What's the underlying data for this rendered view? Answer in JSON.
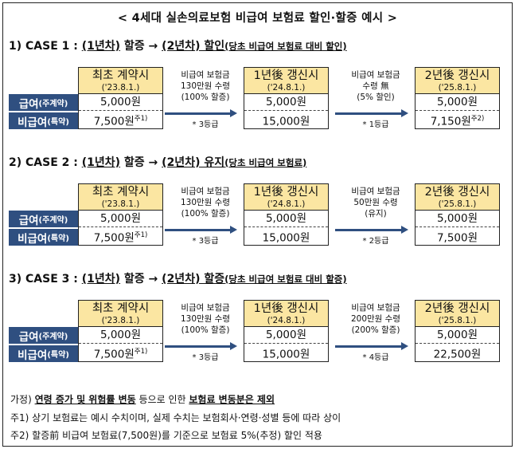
{
  "title": "< 4세대 실손의료보험 비급여 보험료 할인·할증 예시 >",
  "row_labels": {
    "covered_main": "급여",
    "covered_sub": "(주계약)",
    "noncovered_main": "비급여",
    "noncovered_sub": "(특약)"
  },
  "cases": [
    {
      "num": "1) CASE 1 : ",
      "y1": "(1년차)",
      "y1_word": " 할증 → ",
      "y2": "(2년차)",
      "y2_word": " 할인",
      "desc": "(당초 비급여 보험료 대비 할인)",
      "boxes": [
        {
          "h1": "최초 계약시",
          "h2": "('23.8.1.)",
          "covered": "5,000원",
          "noncovered": "7,500원",
          "sup": "주1)"
        },
        {
          "h1": "1년後 갱신시",
          "h2": "('24.8.1.)",
          "covered": "5,000원",
          "noncovered": "15,000원",
          "sup": ""
        },
        {
          "h1": "2년後 갱신시",
          "h2": "('25.8.1.)",
          "covered": "5,000원",
          "noncovered": "7,150원",
          "sup": "주2)"
        }
      ],
      "notes": [
        {
          "l1": "비급여 보험금",
          "l2": "130만원 수령",
          "l3": "(100% 할증)",
          "grade": "* 3등급"
        },
        {
          "l1": "비급여 보험금",
          "l2": "수령 無",
          "l3": "(5% 할인)",
          "grade": "* 1등급"
        }
      ]
    },
    {
      "num": "2) CASE 2 : ",
      "y1": "(1년차)",
      "y1_word": " 할증 → ",
      "y2": "(2년차)",
      "y2_word": " 유지",
      "desc": "(당초 비급여 보험료)",
      "boxes": [
        {
          "h1": "최초 계약시",
          "h2": "('23.8.1.)",
          "covered": "5,000원",
          "noncovered": "7,500원",
          "sup": "주1)"
        },
        {
          "h1": "1년後 갱신시",
          "h2": "('24.8.1.)",
          "covered": "5,000원",
          "noncovered": "15,000원",
          "sup": ""
        },
        {
          "h1": "2년後 갱신시",
          "h2": "('25.8.1.)",
          "covered": "5,000원",
          "noncovered": "7,500원",
          "sup": ""
        }
      ],
      "notes": [
        {
          "l1": "비급여 보험금",
          "l2": "130만원 수령",
          "l3": "(100% 할증)",
          "grade": "* 3등급"
        },
        {
          "l1": "비급여 보험금",
          "l2": "50만원 수령",
          "l3": "(유지)",
          "grade": "* 2등급"
        }
      ]
    },
    {
      "num": "3) CASE 3  : ",
      "y1": "(1년차)",
      "y1_word": " 할증 → ",
      "y2": "(2년차)",
      "y2_word": " 할증",
      "desc": "(당초 비급여 보험료 대비 할증)",
      "boxes": [
        {
          "h1": "최초 계약시",
          "h2": "('23.8.1.)",
          "covered": "5,000원",
          "noncovered": "7,500원",
          "sup": "주1)"
        },
        {
          "h1": "1년後 갱신시",
          "h2": "('24.8.1.)",
          "covered": "5,000원",
          "noncovered": "15,000원",
          "sup": ""
        },
        {
          "h1": "2년後 갱신시",
          "h2": "('25.8.1.)",
          "covered": "5,000원",
          "noncovered": "22,500원",
          "sup": ""
        }
      ],
      "notes": [
        {
          "l1": "비급여 보험금",
          "l2": "130만원 수령",
          "l3": "(100% 할증)",
          "grade": "* 3등급"
        },
        {
          "l1": "비급여 보험금",
          "l2": "200만원 수령",
          "l3": "(200% 할증)",
          "grade": "* 4등급"
        }
      ]
    }
  ],
  "footnotes": {
    "assume_prefix": "가정) ",
    "assume_bold1": "연령 증가 및 위험률 변동",
    "assume_mid": " 등으로 인한 ",
    "assume_bold2": "보험료 변동분은 제외",
    "note1": "주1) 상기 보험료는 예시 수치이며, 실제 수치는 보험회사·연령·성별 등에 따라 상이",
    "note2": "주2) 할증前 비급여 보험료(7,500원)를 기준으로 보험료 5%(추정) 할인 적용"
  },
  "colors": {
    "label_bg": "#2f4f80",
    "box_header": "#fbe6a2",
    "arrow": "#2f4f80"
  }
}
